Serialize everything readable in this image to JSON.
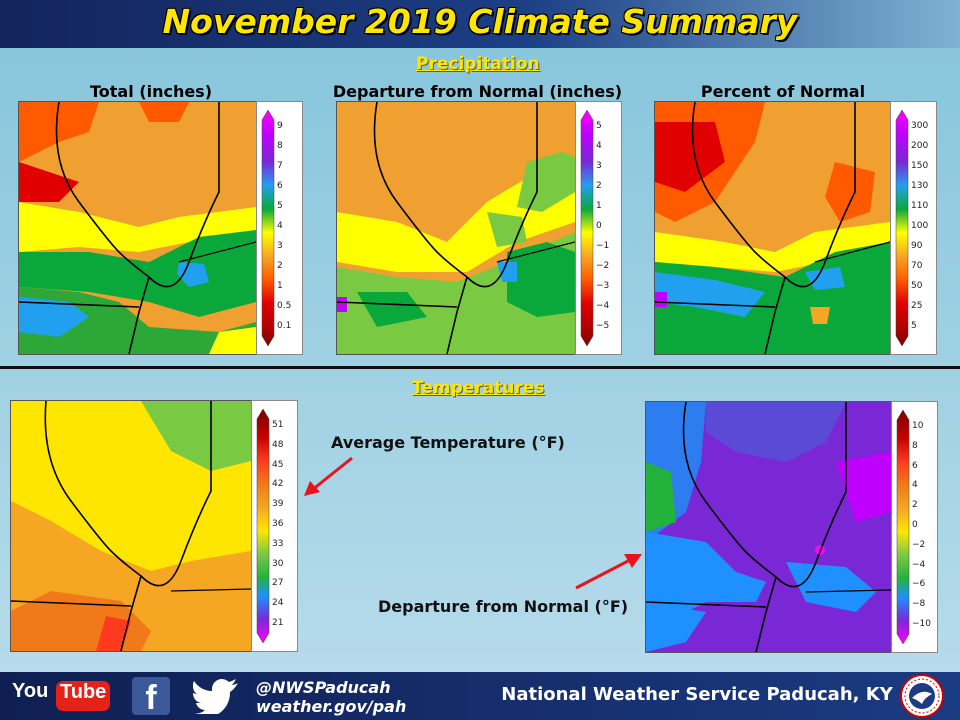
{
  "header": {
    "title": "November 2019 Climate Summary"
  },
  "precipitation": {
    "section_label": "Precipitation",
    "maps": [
      {
        "title": "Total (inches)",
        "legend_ticks": [
          "9",
          "8",
          "7",
          "6",
          "5",
          "4",
          "3",
          "2",
          "1",
          "0.5",
          "0.1"
        ]
      },
      {
        "title": "Departure from Normal (inches)",
        "legend_ticks": [
          "5",
          "4",
          "3",
          "2",
          "1",
          "0",
          "−1",
          "−2",
          "−3",
          "−4",
          "−5"
        ]
      },
      {
        "title": "Percent of Normal",
        "legend_ticks": [
          "300",
          "200",
          "150",
          "130",
          "110",
          "100",
          "90",
          "70",
          "50",
          "25",
          "5"
        ]
      }
    ]
  },
  "temperatures": {
    "section_label": "Temperatures",
    "average": {
      "label": "Average Temperature (°F)",
      "legend_ticks": [
        "51",
        "48",
        "45",
        "42",
        "39",
        "36",
        "33",
        "30",
        "27",
        "24",
        "21"
      ]
    },
    "departure": {
      "label": "Departure from Normal (°F)",
      "legend_ticks": [
        "10",
        "8",
        "6",
        "4",
        "2",
        "0",
        "−2",
        "−4",
        "−6",
        "−8",
        "−10"
      ]
    }
  },
  "footer": {
    "youtube_you": "You",
    "youtube_tube": "Tube",
    "facebook_glyph": "f",
    "twitter_handle": "@NWSPaducah",
    "website": "weather.gov/pah",
    "office": "National Weather Service Paducah, KY",
    "icons": [
      "youtube-icon",
      "facebook-icon",
      "twitter-icon",
      "nws-logo"
    ]
  },
  "colors": {
    "title_yellow": "#ffe600",
    "header_navy": "#14245c",
    "arrow_red": "#e8141c",
    "precip_scale": [
      "#ff00ff",
      "#c000ff",
      "#7a28d6",
      "#22a0f0",
      "#0aa83a",
      "#ffff00",
      "#f5a623",
      "#ff5a00",
      "#e00000",
      "#b40000",
      "#800000"
    ],
    "temp_scale": [
      "#7a0000",
      "#c80000",
      "#ff3a1e",
      "#f07a1a",
      "#f5a623",
      "#ffe600",
      "#7ac943",
      "#23b23c",
      "#1e90ff",
      "#7a28d6",
      "#ff00ff"
    ]
  }
}
